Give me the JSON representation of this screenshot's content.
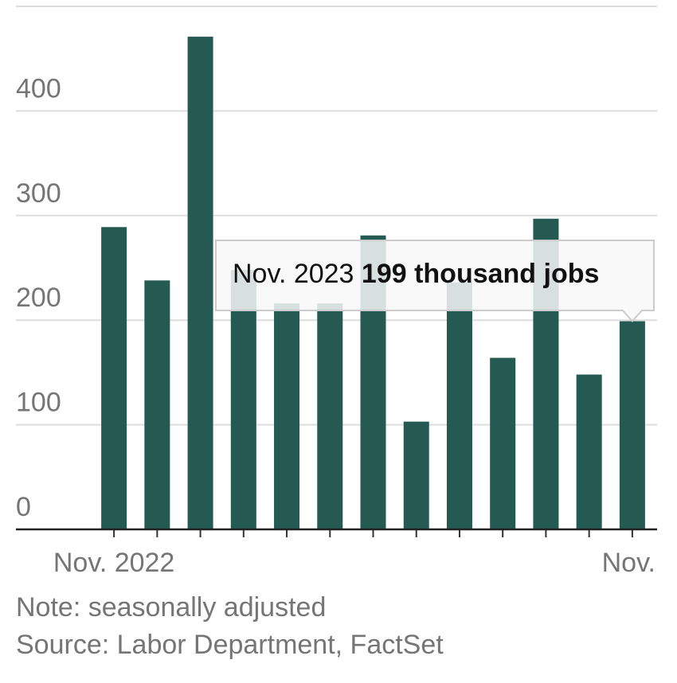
{
  "chart_data": {
    "type": "bar",
    "categories": [
      "Nov. 2022",
      null,
      null,
      null,
      null,
      null,
      null,
      null,
      null,
      null,
      null,
      null,
      "Nov."
    ],
    "values": [
      289,
      238,
      471,
      248,
      216,
      216,
      281,
      103,
      236,
      164,
      297,
      148,
      199
    ],
    "color": "#255a52",
    "ylim": [
      0,
      500
    ],
    "yticks": [
      0,
      100,
      200,
      300,
      400
    ],
    "grid": true,
    "tooltip": {
      "date": "Nov. 2023",
      "text": "199 thousand jobs"
    },
    "note": "Note: seasonally adjusted",
    "source": "Source: Labor Department, FactSet"
  }
}
